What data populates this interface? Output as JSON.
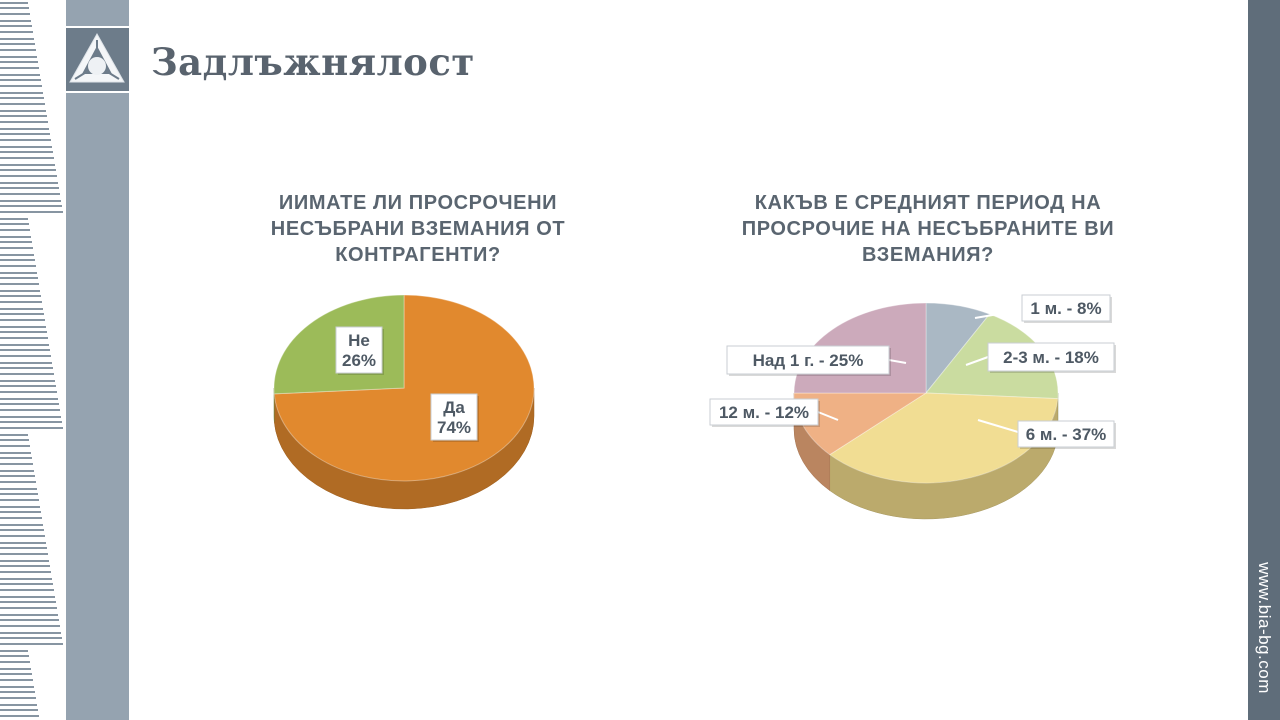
{
  "page": {
    "title": "Задлъжнялост",
    "site_url": "www.bia-bg.com"
  },
  "chart_data": [
    {
      "type": "pie",
      "title": [
        "ИИМАТЕ ЛИ ПРОСРОЧЕНИ",
        "НЕСЪБРАНИ ВЗЕМАНИЯ ОТ",
        "КОНТРАГЕНТИ?"
      ],
      "slices": [
        {
          "label": "Да",
          "value": 74,
          "value_label": "74%",
          "color": "#e1892e"
        },
        {
          "label": "Не",
          "value": 26,
          "value_label": "26%",
          "color": "#9cbb59"
        }
      ],
      "start_angle_deg": 0
    },
    {
      "type": "pie",
      "title": [
        "КАКЪВ Е СРЕДНИЯТ ПЕРИОД НА",
        "ПРОСРОЧИЕ НА НЕСЪБРАНИТЕ ВИ",
        "ВЗЕМАНИЯ?"
      ],
      "slices": [
        {
          "label": "1 м. - 8%",
          "value": 8,
          "color": "#a3b2bf"
        },
        {
          "label": "2-3 м. - 18%",
          "value": 18,
          "color": "#c6d998"
        },
        {
          "label": "6 м. - 37%",
          "value": 37,
          "color": "#f0da8a"
        },
        {
          "label": "12 м. - 12%",
          "value": 12,
          "color": "#eeaa7b"
        },
        {
          "label": "Над 1 г. - 25%",
          "value": 25,
          "color": "#c8a3b5"
        }
      ],
      "start_angle_deg": 0
    }
  ]
}
